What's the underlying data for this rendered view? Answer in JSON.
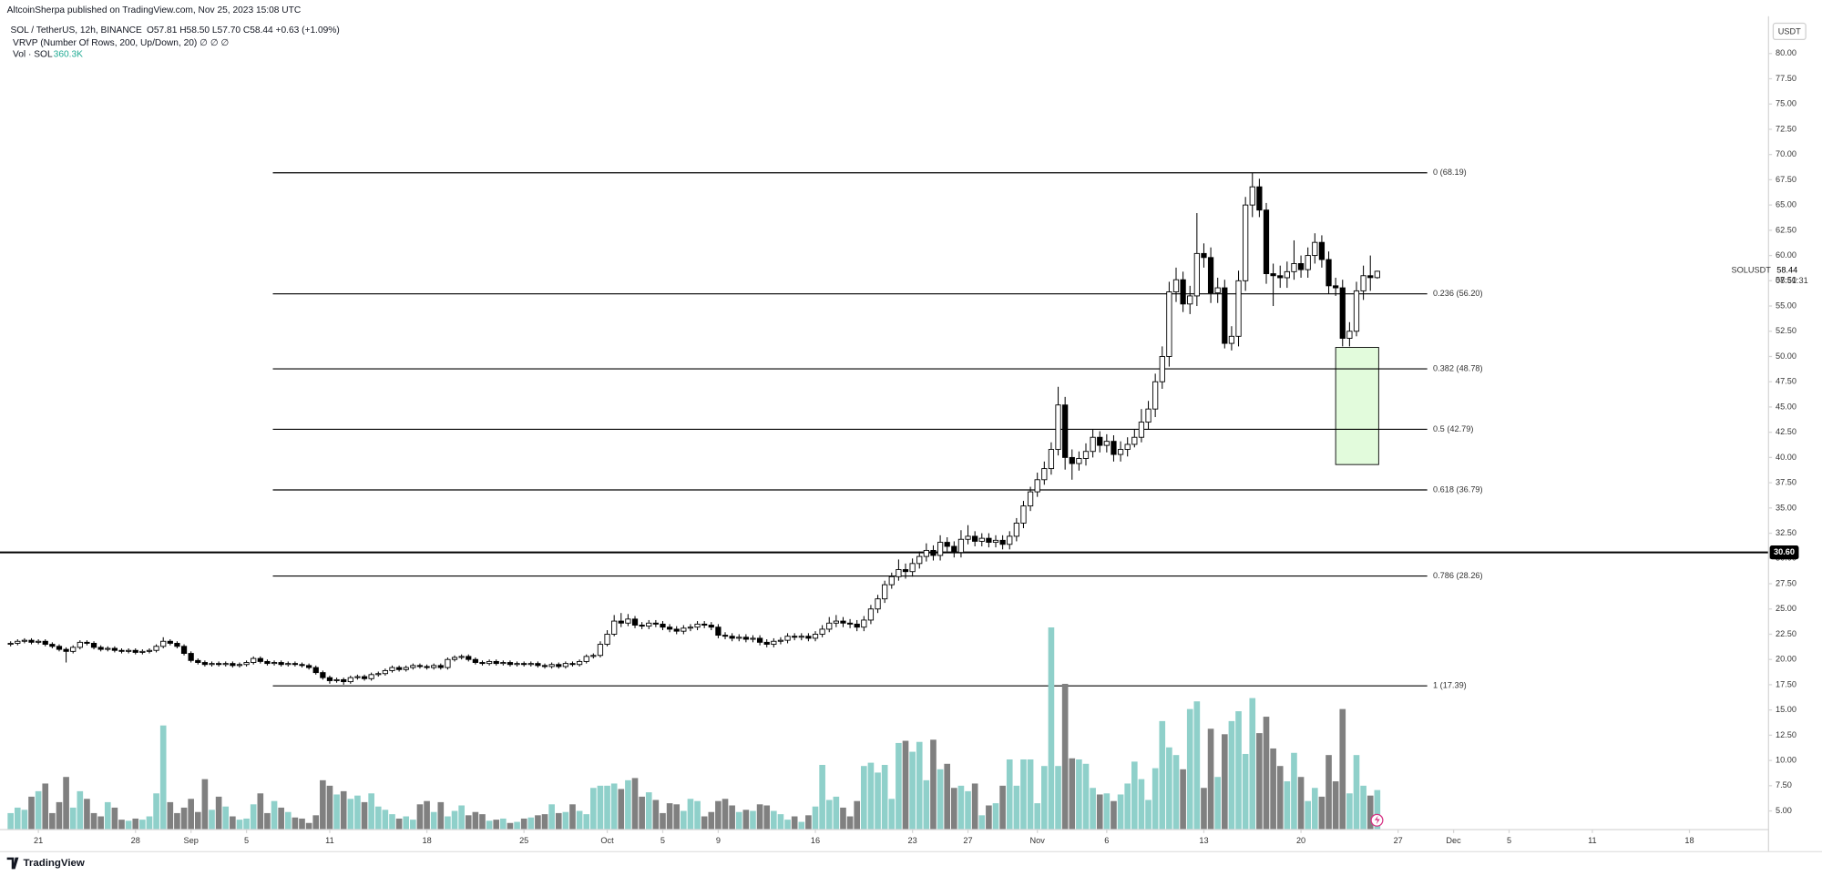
{
  "chart_data": {
    "type": "candlestick",
    "publisher": "AltcoinSherpa published on TradingView.com, Nov 25, 2023 15:08 UTC",
    "title": "SOL / TetherUS, 12h, BINANCE",
    "legend_text": "O57.81 H58.50 L57.70 C58.44 +0.63 (+1.09%)",
    "indicator": "VRVP (Number Of Rows, 200, Up/Down, 20) ∅ ∅ ∅",
    "volume_name": "Vol · SOL",
    "volume_value_label": "360.3K",
    "currency": "USDT",
    "brand": "TradingView",
    "last_price": {
      "symbol": "SOLUSDT",
      "label": "58.44",
      "countdown": "08:51:31"
    },
    "up_color": "#ffffff",
    "down_color": "#000000",
    "wick_color": "#000000",
    "volume_up_color": "#8fd0ca",
    "volume_down_color": "#808080",
    "xlim": [
      -0.36,
      253.4
    ],
    "xticks": [
      {
        "value": 4,
        "label": "21"
      },
      {
        "value": 18,
        "label": "28"
      },
      {
        "value": 26,
        "label": "Sep"
      },
      {
        "value": 34,
        "label": "5"
      },
      {
        "value": 46,
        "label": "11"
      },
      {
        "value": 60,
        "label": "18"
      },
      {
        "value": 74,
        "label": "25"
      },
      {
        "value": 86,
        "label": "Oct"
      },
      {
        "value": 94,
        "label": "5"
      },
      {
        "value": 102,
        "label": "9"
      },
      {
        "value": 116,
        "label": "16"
      },
      {
        "value": 130,
        "label": "23"
      },
      {
        "value": 138,
        "label": "27"
      },
      {
        "value": 148,
        "label": "Nov"
      },
      {
        "value": 158,
        "label": "6"
      },
      {
        "value": 172,
        "label": "13"
      },
      {
        "value": 186,
        "label": "20"
      },
      {
        "value": 200,
        "label": "27"
      },
      {
        "value": 208,
        "label": "Dec"
      },
      {
        "value": 216,
        "label": "5"
      },
      {
        "value": 228,
        "label": "11"
      },
      {
        "value": 242,
        "label": "18"
      }
    ],
    "ylim": [
      3.16,
      85.3
    ],
    "yticks": [
      {
        "value": 5,
        "label": "5.00"
      },
      {
        "value": 7.5,
        "label": "7.50"
      },
      {
        "value": 10,
        "label": "10.00"
      },
      {
        "value": 12.5,
        "label": "12.50"
      },
      {
        "value": 15,
        "label": "15.00"
      },
      {
        "value": 17.5,
        "label": "17.50"
      },
      {
        "value": 20,
        "label": "20.00"
      },
      {
        "value": 22.5,
        "label": "22.50"
      },
      {
        "value": 25,
        "label": "25.00"
      },
      {
        "value": 27.5,
        "label": "27.50"
      },
      {
        "value": 30,
        "label": "30.00"
      },
      {
        "value": 32.5,
        "label": "32.50"
      },
      {
        "value": 35,
        "label": "35.00"
      },
      {
        "value": 37.5,
        "label": "37.50"
      },
      {
        "value": 40,
        "label": "40.00"
      },
      {
        "value": 42.5,
        "label": "42.50"
      },
      {
        "value": 45,
        "label": "45.00"
      },
      {
        "value": 47.5,
        "label": "47.50"
      },
      {
        "value": 50,
        "label": "50.00"
      },
      {
        "value": 52.5,
        "label": "52.50"
      },
      {
        "value": 55,
        "label": "55.00"
      },
      {
        "value": 57.5,
        "label": "57.50"
      },
      {
        "value": 60,
        "label": "60.00"
      },
      {
        "value": 62.5,
        "label": "62.50"
      },
      {
        "value": 65,
        "label": "65.00"
      },
      {
        "value": 67.5,
        "label": "67.50"
      },
      {
        "value": 70,
        "label": "70.00"
      },
      {
        "value": 72.5,
        "label": "72.50"
      },
      {
        "value": 75,
        "label": "75.00"
      },
      {
        "value": 77.5,
        "label": "77.50"
      },
      {
        "value": 80,
        "label": "80.00"
      }
    ],
    "grid": false,
    "volume_ylim": [
      0,
      3500
    ],
    "open": [
      21.5,
      21.6,
      21.8,
      21.9,
      21.7,
      21.8,
      21.5,
      21.3,
      21.0,
      20.8,
      21.2,
      21.7,
      21.6,
      21.2,
      21.0,
      21.1,
      20.9,
      20.8,
      20.9,
      20.7,
      20.8,
      20.9,
      21.3,
      21.8,
      21.6,
      21.3,
      20.6,
      19.9,
      19.7,
      19.5,
      19.6,
      19.5,
      19.6,
      19.4,
      19.5,
      19.7,
      20.1,
      19.8,
      19.6,
      19.7,
      19.5,
      19.6,
      19.5,
      19.4,
      19.2,
      18.7,
      18.2,
      17.9,
      18.0,
      17.8,
      18.2,
      18.3,
      18.1,
      18.5,
      18.6,
      18.9,
      19.2,
      19.0,
      19.2,
      19.4,
      19.3,
      19.2,
      19.4,
      19.2,
      20.0,
      20.2,
      20.3,
      20.0,
      19.7,
      19.6,
      19.8,
      19.6,
      19.7,
      19.5,
      19.6,
      19.5,
      19.6,
      19.4,
      19.3,
      19.5,
      19.3,
      19.6,
      19.5,
      19.8,
      20.3,
      20.4,
      21.5,
      22.5,
      23.8,
      23.6,
      24.0,
      23.4,
      23.3,
      23.6,
      23.5,
      23.2,
      23.0,
      22.8,
      23.1,
      23.2,
      23.5,
      23.4,
      23.2,
      22.4,
      22.3,
      22.1,
      22.2,
      22.0,
      22.1,
      21.7,
      21.5,
      21.8,
      21.9,
      22.3,
      22.2,
      22.3,
      22.1,
      22.5,
      23.0,
      23.6,
      23.8,
      23.6,
      23.5,
      23.2,
      23.9,
      25.0,
      26.0,
      27.4,
      28.2,
      28.9,
      28.7,
      29.5,
      30.2,
      30.8,
      30.3,
      31.6,
      31.2,
      30.6,
      31.9,
      32.2,
      31.7,
      32.0,
      31.6,
      31.8,
      31.4,
      32.2,
      33.5,
      35.2,
      36.6,
      37.8,
      38.9,
      40.8,
      45.2,
      40.0,
      39.4,
      39.9,
      40.6,
      42.0,
      41.2,
      41.6,
      40.3,
      40.8,
      41.3,
      42.0,
      43.5,
      44.8,
      47.5,
      50.0,
      56.4,
      57.6,
      55.2,
      56.0,
      60.2,
      59.8,
      56.3,
      56.8,
      51.3,
      52.0,
      57.5,
      65.0,
      66.8,
      64.5,
      58.2,
      58.0,
      57.8,
      58.4,
      59.2,
      58.6,
      60.0,
      61.3,
      59.6,
      57.0,
      56.8,
      51.8,
      52.5,
      56.5,
      58.0,
      57.81
    ],
    "high": [
      21.8,
      22.0,
      22.1,
      22.1,
      22.0,
      22.0,
      21.7,
      21.5,
      21.2,
      21.4,
      21.9,
      21.9,
      21.8,
      21.4,
      21.3,
      21.3,
      21.1,
      21.1,
      21.1,
      21.0,
      21.1,
      21.5,
      22.2,
      22.0,
      21.8,
      21.5,
      20.8,
      20.1,
      19.9,
      19.8,
      19.8,
      19.8,
      19.8,
      19.7,
      19.9,
      20.3,
      20.3,
      20.0,
      19.9,
      19.9,
      19.8,
      19.8,
      19.7,
      19.6,
      19.4,
      18.9,
      18.4,
      18.2,
      18.2,
      18.4,
      18.5,
      18.5,
      18.7,
      18.8,
      19.1,
      19.4,
      19.4,
      19.4,
      19.6,
      19.6,
      19.5,
      19.6,
      19.6,
      20.2,
      20.4,
      20.5,
      20.5,
      20.2,
      19.9,
      20.0,
      20.0,
      19.9,
      19.9,
      19.8,
      19.8,
      19.8,
      19.8,
      19.6,
      19.7,
      19.7,
      19.8,
      19.8,
      20.0,
      20.5,
      20.6,
      21.8,
      22.9,
      24.4,
      24.6,
      24.5,
      24.3,
      23.7,
      23.9,
      23.9,
      23.8,
      23.5,
      23.3,
      23.4,
      23.5,
      23.8,
      23.8,
      23.7,
      23.5,
      22.7,
      22.6,
      22.5,
      22.5,
      22.4,
      22.4,
      22.0,
      22.1,
      22.2,
      22.6,
      22.6,
      22.6,
      22.6,
      22.8,
      23.4,
      24.2,
      24.4,
      24.2,
      24.0,
      23.9,
      24.3,
      25.4,
      26.4,
      27.8,
      28.6,
      29.9,
      29.5,
      30.0,
      30.7,
      31.5,
      31.3,
      32.3,
      32.1,
      31.7,
      32.8,
      33.3,
      32.7,
      32.5,
      32.5,
      32.3,
      32.3,
      32.7,
      34.0,
      35.7,
      37.1,
      38.5,
      39.6,
      41.5,
      47.0,
      46.0,
      40.8,
      40.6,
      41.4,
      42.8,
      42.6,
      42.3,
      42.2,
      41.6,
      42.0,
      42.8,
      44.8,
      45.6,
      48.3,
      51.0,
      57.4,
      58.8,
      58.4,
      57.0,
      64.2,
      61.2,
      60.8,
      57.8,
      57.6,
      53.0,
      58.5,
      65.8,
      68.19,
      67.6,
      65.2,
      59.2,
      59.0,
      59.4,
      61.5,
      60.0,
      60.8,
      62.2,
      62.0,
      60.4,
      57.8,
      57.6,
      53.4,
      57.4,
      59.0,
      60.0,
      58.5
    ],
    "low": [
      21.3,
      21.4,
      21.6,
      21.5,
      21.5,
      21.3,
      21.1,
      20.8,
      19.7,
      20.6,
      21.0,
      21.4,
      21.0,
      20.8,
      20.8,
      20.7,
      20.6,
      20.6,
      20.5,
      20.5,
      20.6,
      20.7,
      21.1,
      21.4,
      21.1,
      20.4,
      19.7,
      19.5,
      19.3,
      19.3,
      19.3,
      19.3,
      19.2,
      19.2,
      19.3,
      19.5,
      19.6,
      19.4,
      19.4,
      19.3,
      19.3,
      19.3,
      19.2,
      19.0,
      18.5,
      18.0,
      17.6,
      17.7,
      17.5,
      17.6,
      18.0,
      17.9,
      17.9,
      18.3,
      18.4,
      18.7,
      18.8,
      18.8,
      19.0,
      19.1,
      19.0,
      19.0,
      19.0,
      19.0,
      19.8,
      20.0,
      19.8,
      19.5,
      19.4,
      19.4,
      19.4,
      19.4,
      19.3,
      19.3,
      19.3,
      19.3,
      19.2,
      19.1,
      19.1,
      19.1,
      19.1,
      19.3,
      19.3,
      19.6,
      20.1,
      20.2,
      21.3,
      22.3,
      23.2,
      23.3,
      23.1,
      23.0,
      23.0,
      23.2,
      22.9,
      22.7,
      22.5,
      22.5,
      22.8,
      22.9,
      23.1,
      22.9,
      22.1,
      22.0,
      21.8,
      21.8,
      21.7,
      21.7,
      21.4,
      21.2,
      21.2,
      21.5,
      21.6,
      21.9,
      21.9,
      21.8,
      21.8,
      22.2,
      22.7,
      23.2,
      23.2,
      23.1,
      22.8,
      22.8,
      23.5,
      24.6,
      25.6,
      27.0,
      27.8,
      28.0,
      28.2,
      29.0,
      29.7,
      29.8,
      29.8,
      30.7,
      30.1,
      30.1,
      31.4,
      31.2,
      31.2,
      31.1,
      31.1,
      30.9,
      30.9,
      31.7,
      33.0,
      34.7,
      36.1,
      37.3,
      38.3,
      40.2,
      38.8,
      37.8,
      38.7,
      39.2,
      40.0,
      40.5,
      40.5,
      39.6,
      39.6,
      40.1,
      41.0,
      41.5,
      42.8,
      44.0,
      46.8,
      49.0,
      55.4,
      54.4,
      54.2,
      55.0,
      58.8,
      55.3,
      55.3,
      50.8,
      50.6,
      51.0,
      56.5,
      63.8,
      63.8,
      57.2,
      55.0,
      56.8,
      56.8,
      57.6,
      57.8,
      57.8,
      59.2,
      58.8,
      56.2,
      56.0,
      51.0,
      51.0,
      52.0,
      55.6,
      56.5,
      57.7
    ],
    "close": [
      21.6,
      21.8,
      21.9,
      21.7,
      21.8,
      21.5,
      21.3,
      21.0,
      20.8,
      21.2,
      21.7,
      21.6,
      21.2,
      21.0,
      21.1,
      20.9,
      20.8,
      20.9,
      20.7,
      20.8,
      20.9,
      21.3,
      21.8,
      21.6,
      21.3,
      20.6,
      19.9,
      19.7,
      19.5,
      19.6,
      19.5,
      19.6,
      19.4,
      19.5,
      19.7,
      20.1,
      19.8,
      19.6,
      19.7,
      19.5,
      19.6,
      19.5,
      19.4,
      19.2,
      18.7,
      18.2,
      17.9,
      18.0,
      17.8,
      18.2,
      18.3,
      18.1,
      18.5,
      18.6,
      18.9,
      19.2,
      19.0,
      19.2,
      19.4,
      19.3,
      19.2,
      19.4,
      19.2,
      20.0,
      20.2,
      20.3,
      20.0,
      19.7,
      19.6,
      19.8,
      19.6,
      19.7,
      19.5,
      19.6,
      19.5,
      19.6,
      19.4,
      19.3,
      19.5,
      19.3,
      19.6,
      19.5,
      19.8,
      20.3,
      20.4,
      21.5,
      22.5,
      23.8,
      23.6,
      24.0,
      23.4,
      23.3,
      23.6,
      23.5,
      23.2,
      23.0,
      22.8,
      23.1,
      23.2,
      23.5,
      23.4,
      23.2,
      22.4,
      22.3,
      22.1,
      22.2,
      22.0,
      22.1,
      21.7,
      21.5,
      21.8,
      21.9,
      22.3,
      22.2,
      22.3,
      22.1,
      22.5,
      23.0,
      23.6,
      23.8,
      23.6,
      23.5,
      23.2,
      23.9,
      25.0,
      26.0,
      27.4,
      28.2,
      28.9,
      28.7,
      29.5,
      30.2,
      30.8,
      30.3,
      31.6,
      31.2,
      30.6,
      31.9,
      32.2,
      31.7,
      32.0,
      31.6,
      31.8,
      31.4,
      32.2,
      33.5,
      35.2,
      36.6,
      37.8,
      38.9,
      40.8,
      45.2,
      40.0,
      39.4,
      39.9,
      40.6,
      42.0,
      41.2,
      41.6,
      40.3,
      40.8,
      41.3,
      42.0,
      43.5,
      44.8,
      47.5,
      50.0,
      56.4,
      57.6,
      55.2,
      56.0,
      60.2,
      59.8,
      56.3,
      56.8,
      51.3,
      52.0,
      57.5,
      65.0,
      66.8,
      64.5,
      58.2,
      58.0,
      57.8,
      58.4,
      59.2,
      58.6,
      60.0,
      61.3,
      59.6,
      57.0,
      56.8,
      51.8,
      52.5,
      56.5,
      58.0,
      57.81,
      58.44
    ],
    "volume": [
      150,
      200,
      180,
      300,
      350,
      420,
      150,
      250,
      480,
      200,
      350,
      280,
      150,
      120,
      250,
      200,
      90,
      80,
      100,
      90,
      120,
      330,
      950,
      250,
      150,
      200,
      280,
      160,
      460,
      180,
      300,
      210,
      120,
      90,
      100,
      230,
      330,
      150,
      260,
      200,
      160,
      110,
      100,
      60,
      130,
      450,
      400,
      320,
      350,
      280,
      310,
      250,
      330,
      210,
      180,
      140,
      100,
      120,
      90,
      230,
      260,
      160,
      250,
      120,
      170,
      220,
      130,
      160,
      140,
      80,
      90,
      100,
      60,
      70,
      100,
      110,
      130,
      140,
      230,
      150,
      160,
      230,
      170,
      140,
      380,
      400,
      400,
      420,
      370,
      450,
      470,
      300,
      340,
      270,
      150,
      240,
      230,
      170,
      280,
      260,
      120,
      160,
      260,
      280,
      220,
      160,
      180,
      170,
      230,
      220,
      170,
      140,
      90,
      120,
      70,
      130,
      210,
      590,
      270,
      300,
      200,
      120,
      260,
      580,
      610,
      520,
      590,
      280,
      790,
      810,
      710,
      800,
      450,
      820,
      550,
      600,
      380,
      400,
      350,
      420,
      130,
      220,
      240,
      400,
      640,
      400,
      640,
      640,
      240,
      580,
      1845,
      580,
      1330,
      650,
      640,
      600,
      380,
      320,
      330,
      260,
      320,
      420,
      620,
      460,
      270,
      560,
      990,
      750,
      680,
      550,
      1100,
      1170,
      380,
      920,
      480,
      870,
      990,
      1080,
      690,
      1200,
      880,
      1030,
      740,
      580,
      440,
      700,
      480,
      260,
      380,
      300,
      680,
      440,
      1100,
      330,
      680,
      400,
      310,
      360.3
    ],
    "fib": {
      "x": [
        37.8,
        204.2
      ],
      "levels": [
        {
          "label": "0 (68.19)",
          "value": 68.19
        },
        {
          "label": "0.236 (56.20)",
          "value": 56.2
        },
        {
          "label": "0.382 (48.78)",
          "value": 48.78
        },
        {
          "label": "0.5 (42.79)",
          "value": 42.79
        },
        {
          "label": "0.618 (36.79)",
          "value": 36.79
        },
        {
          "label": "0.786 (28.26)",
          "value": 28.26
        },
        {
          "label": "1 (17.39)",
          "value": 17.39
        }
      ]
    },
    "horizontal_line": {
      "value": 30.6,
      "label": "30.60"
    },
    "zone": {
      "x": [
        191,
        197.2
      ],
      "ylim": [
        39.3,
        50.9
      ],
      "color": "#e2fbdc"
    }
  }
}
